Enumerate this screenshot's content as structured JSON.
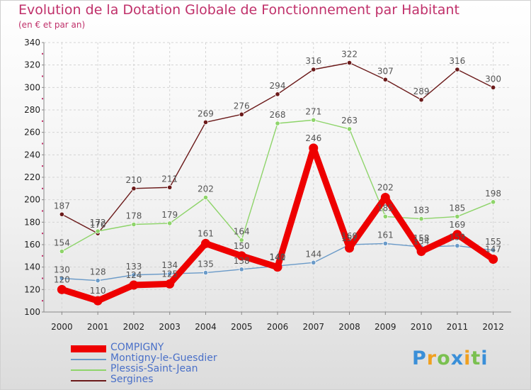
{
  "header": {
    "title": "Evolution de la Dotation Globale de Fonctionnement par Habitant",
    "subtitle": "(en € et par an)"
  },
  "chart_data": {
    "type": "line",
    "title": "Evolution de la Dotation Globale de Fonctionnement par Habitant",
    "subtitle": "(en € et par an)",
    "xlabel": "",
    "ylabel": "",
    "x": [
      "2000",
      "2001",
      "2002",
      "2003",
      "2004",
      "2005",
      "2006",
      "2007",
      "2008",
      "2009",
      "2010",
      "2011",
      "2012"
    ],
    "ylim": [
      100,
      340
    ],
    "yticks": [
      "100",
      "120",
      "140",
      "160",
      "180",
      "200",
      "220",
      "240",
      "260",
      "280",
      "300",
      "320",
      "340"
    ],
    "grid": true,
    "legend_position": "bottom-left",
    "series": [
      {
        "name": "Sergines",
        "color": "#6b1a1a",
        "values": [
          187,
          170,
          210,
          211,
          269,
          276,
          294,
          316,
          322,
          307,
          289,
          316,
          300
        ],
        "labels": [
          "187",
          "170",
          "210",
          "211",
          "269",
          "276",
          "294",
          "316",
          "322",
          "307",
          "289",
          "316",
          "300"
        ]
      },
      {
        "name": "Plessis-Saint-Jean",
        "color": "#8ed46a",
        "values": [
          154,
          172,
          178,
          179,
          202,
          164,
          268,
          271,
          263,
          185,
          183,
          185,
          198
        ],
        "labels": [
          "154",
          "172",
          "178",
          "179",
          "202",
          "164",
          "268",
          "271",
          "263",
          "185",
          "183",
          "185",
          "198"
        ]
      },
      {
        "name": "Montigny-le-Guesdier",
        "color": "#6a9ac8",
        "values": [
          130,
          128,
          133,
          134,
          135,
          138,
          141,
          144,
          160,
          161,
          158,
          159,
          155
        ],
        "labels": [
          "130",
          "128",
          "133",
          "134",
          "135",
          "138",
          "141",
          "144",
          "160",
          "161",
          "158",
          "159",
          "155"
        ]
      },
      {
        "name": "COMPIGNY",
        "color": "#ee0000",
        "values": [
          120,
          110,
          124,
          125,
          161,
          150,
          140,
          246,
          157,
          202,
          154,
          169,
          147
        ],
        "labels": [
          "120",
          "110",
          "124",
          "125",
          "161",
          "150",
          "140",
          "246",
          "157",
          "202",
          "154",
          "169",
          "147"
        ]
      }
    ]
  },
  "legend": {
    "items": [
      {
        "name": "COMPIGNY",
        "color": "#ee0000"
      },
      {
        "name": "Montigny-le-Guesdier",
        "color": "#6a9ac8"
      },
      {
        "name": "Plessis-Saint-Jean",
        "color": "#8ed46a"
      },
      {
        "name": "Sergines",
        "color": "#6b1a1a"
      }
    ]
  },
  "logo": {
    "letters": [
      "P",
      "r",
      "o",
      "x",
      "i",
      "t",
      "i"
    ],
    "colors": [
      "#3a8fd8",
      "#f0a020",
      "#7ac050",
      "#3a8fd8",
      "#f0a020",
      "#7ac050",
      "#3a8fd8"
    ]
  }
}
